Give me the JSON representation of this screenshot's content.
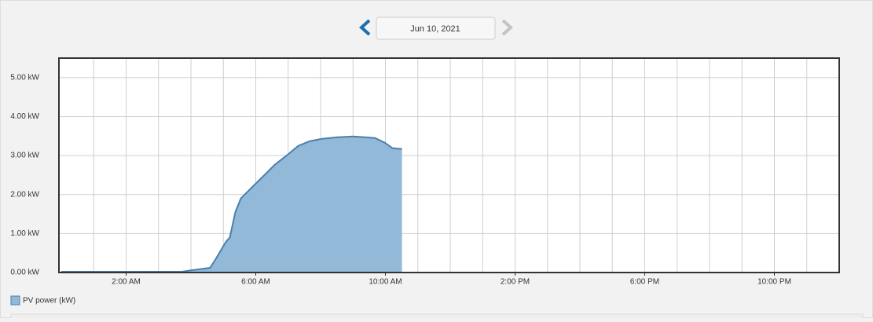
{
  "date": "Jun 10, 2021",
  "chart_data": {
    "type": "area",
    "legend": "PV power (kW)",
    "color": "#93b9d8",
    "line_color": "#4a7fab",
    "series": [
      {
        "name": "PV power (kW)",
        "x": [
          0,
          3.72,
          4.04,
          4.59,
          4.76,
          5.08,
          5.2,
          5.37,
          5.54,
          5.85,
          6.22,
          6.58,
          6.95,
          7.31,
          7.67,
          8.04,
          8.52,
          9.0,
          9.37,
          9.68,
          9.98,
          10.22,
          10.51
        ],
        "values": [
          0.02,
          0.02,
          0.06,
          0.12,
          0.34,
          0.79,
          0.9,
          1.55,
          1.9,
          2.16,
          2.46,
          2.76,
          3.0,
          3.25,
          3.37,
          3.43,
          3.47,
          3.49,
          3.47,
          3.45,
          3.33,
          3.19,
          3.17
        ]
      }
    ],
    "xlim": [
      0,
      24
    ],
    "ylim": [
      0,
      5.5
    ],
    "xticks": [
      {
        "value": 2,
        "label": "2:00 AM"
      },
      {
        "value": 6,
        "label": "6:00 AM"
      },
      {
        "value": 10,
        "label": "10:00 AM"
      },
      {
        "value": 14,
        "label": "2:00 PM"
      },
      {
        "value": 18,
        "label": "6:00 PM"
      },
      {
        "value": 22,
        "label": "10:00 PM"
      }
    ],
    "x_gridlines": [
      1,
      2,
      3,
      4,
      5,
      6,
      7,
      8,
      9,
      10,
      11,
      12,
      13,
      14,
      15,
      16,
      17,
      18,
      19,
      20,
      21,
      22,
      23
    ],
    "yticks": [
      {
        "value": 0,
        "label": "0.00 kW"
      },
      {
        "value": 1,
        "label": "1.00 kW"
      },
      {
        "value": 2,
        "label": "2.00 kW"
      },
      {
        "value": 3,
        "label": "3.00 kW"
      },
      {
        "value": 4,
        "label": "4.00 kW"
      },
      {
        "value": 5,
        "label": "5.00 kW"
      }
    ],
    "grid": true
  }
}
